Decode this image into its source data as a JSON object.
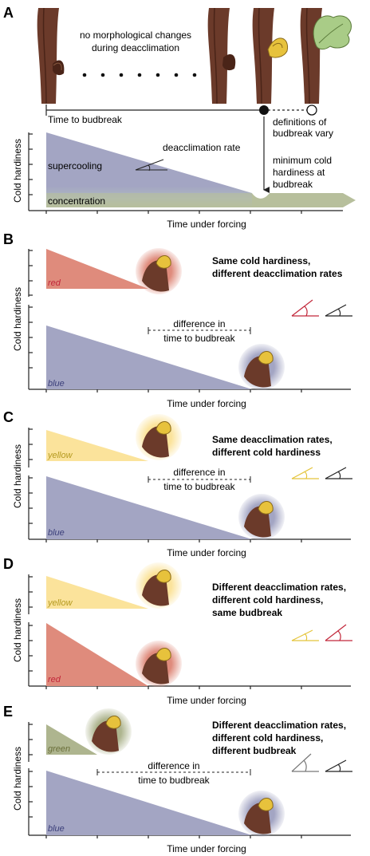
{
  "colors": {
    "blue": "#a3a5c3",
    "red": "#df8b7c",
    "yellow": "#fbe39b",
    "green": "#aeb58f",
    "concentration": "#b7bf9c",
    "bark": "#6b3a2a",
    "bark_dark": "#4a2418",
    "bud": "#e7c23c",
    "leaf": "#a9cc87",
    "angle_red": "#c2273a",
    "angle_yellow": "#e4c43a",
    "angle_black": "#222222",
    "angle_grey": "#777777"
  },
  "panelA": {
    "letter": "A",
    "no_change_line1": "no morphological changes",
    "no_change_line2": "during deacclimation",
    "time_to_budbreak": "Time to budbreak",
    "definitions_line1": "definitions of",
    "definitions_line2": "budbreak vary",
    "deacclimation_rate": "deacclimation rate",
    "supercooling": "supercooling",
    "concentration": "concentration",
    "min_line1": "minimum cold",
    "min_line2": "hardiness at",
    "min_line3": "budbreak",
    "ylabel": "Cold hardiness",
    "xlabel": "Time under forcing"
  },
  "panelB": {
    "letter": "B",
    "title1": "Same cold hardiness,",
    "title2": "different deacclimation rates",
    "top_label": "red",
    "bottom_label": "blue",
    "diff1": "difference in",
    "diff2": "time to budbreak",
    "ylabel": "Cold hardiness",
    "xlabel": "Time under forcing"
  },
  "panelC": {
    "letter": "C",
    "title1": "Same deacclimation rates,",
    "title2": "different cold hardiness",
    "top_label": "yellow",
    "bottom_label": "blue",
    "diff1": "difference in",
    "diff2": "time to budbreak",
    "ylabel": "Cold hardiness",
    "xlabel": "Time under forcing"
  },
  "panelD": {
    "letter": "D",
    "title1": "Different deacclimation rates,",
    "title2": "different cold hardiness,",
    "title3": "same budbreak",
    "top_label": "yellow",
    "bottom_label": "red",
    "ylabel": "Cold hardiness",
    "xlabel": "Time under forcing"
  },
  "panelE": {
    "letter": "E",
    "title1": "Different deacclimation rates,",
    "title2": "different cold hardiness,",
    "title3": "different budbreak",
    "top_label": "green",
    "bottom_label": "blue",
    "diff1": "difference in",
    "diff2": "time to budbreak",
    "ylabel": "Cold hardiness",
    "xlabel": "Time under forcing"
  }
}
